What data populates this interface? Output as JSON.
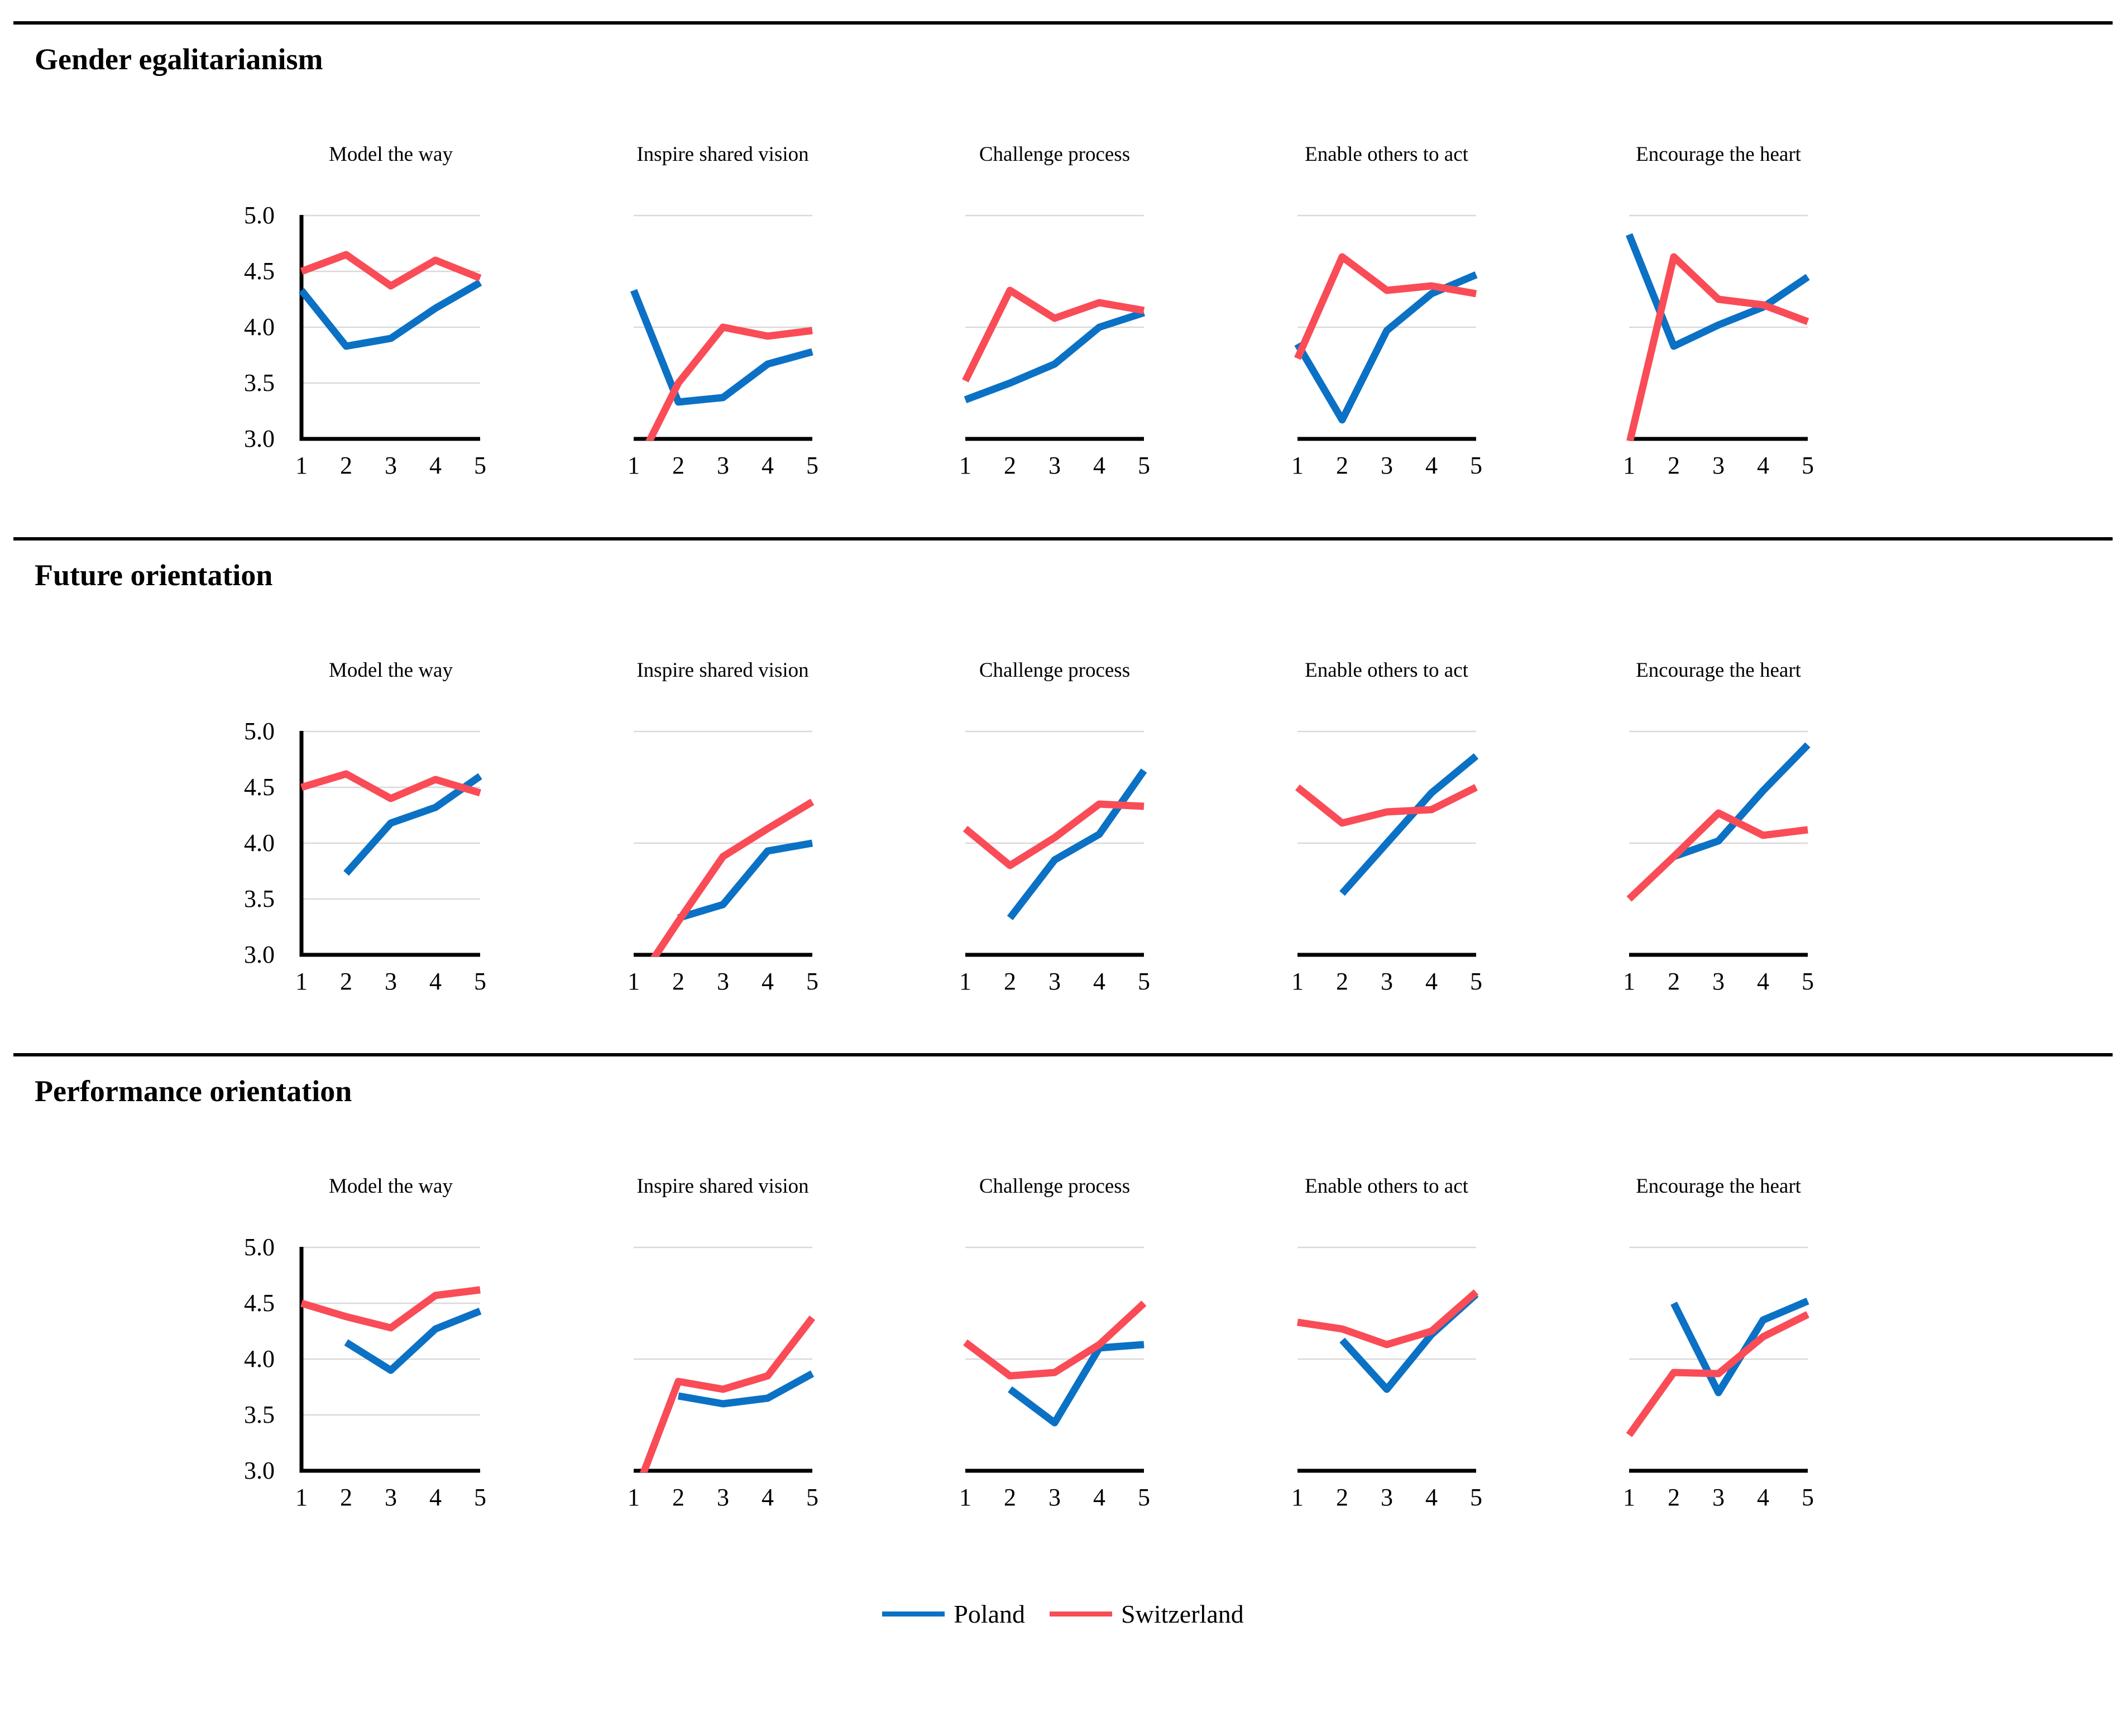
{
  "page": {
    "background": "#ffffff"
  },
  "colors": {
    "poland": "#0B71C5",
    "switzerland": "#F94C57",
    "gridline": "#D9D9D9",
    "axis": "#000000"
  },
  "legend": {
    "items": [
      {
        "label": "Poland",
        "color_key": "poland"
      },
      {
        "label": "Switzerland",
        "color_key": "switzerland"
      }
    ]
  },
  "axes": {
    "y_ticks": [
      "5.0",
      "4.5",
      "4.0",
      "3.5",
      "3.0"
    ],
    "x_ticks": [
      "1",
      "2",
      "3",
      "4",
      "5"
    ],
    "ylim": [
      3.0,
      5.0
    ]
  },
  "chart_data": {
    "type": "line",
    "x": [
      1,
      2,
      3,
      4,
      5
    ],
    "ylim": [
      3.0,
      5.0
    ],
    "legend_position": "bottom",
    "sections": [
      {
        "title": "Gender egalitarianism",
        "charts": [
          {
            "title": "Model the way",
            "show_y_axis": true,
            "gridlines": [
              3.5,
              4.0,
              4.5,
              5.0
            ],
            "series": [
              {
                "name": "Poland",
                "values": [
                  4.33,
                  3.83,
                  3.9,
                  4.17,
                  4.4
                ]
              },
              {
                "name": "Switzerland",
                "values": [
                  4.5,
                  4.65,
                  4.37,
                  4.6,
                  4.44
                ]
              }
            ]
          },
          {
            "title": "Inspire shared vision",
            "show_y_axis": false,
            "gridlines": [
              4.0,
              5.0
            ],
            "series": [
              {
                "name": "Poland",
                "values": [
                  4.33,
                  3.33,
                  3.37,
                  3.67,
                  3.78
                ]
              },
              {
                "name": "Switzerland",
                "values": [
                  2.7,
                  3.5,
                  4.0,
                  3.92,
                  3.97
                ]
              }
            ]
          },
          {
            "title": "Challenge process",
            "show_y_axis": false,
            "gridlines": [
              4.0,
              5.0
            ],
            "series": [
              {
                "name": "Poland",
                "values": [
                  3.35,
                  3.5,
                  3.67,
                  4.0,
                  4.13
                ]
              },
              {
                "name": "Switzerland",
                "values": [
                  3.52,
                  4.33,
                  4.08,
                  4.22,
                  4.15
                ]
              }
            ]
          },
          {
            "title": "Enable others to act",
            "show_y_axis": false,
            "gridlines": [
              4.0,
              5.0
            ],
            "series": [
              {
                "name": "Poland",
                "values": [
                  3.85,
                  3.17,
                  3.97,
                  4.3,
                  4.47
                ]
              },
              {
                "name": "Switzerland",
                "values": [
                  3.72,
                  4.63,
                  4.33,
                  4.37,
                  4.3
                ]
              }
            ]
          },
          {
            "title": "Encourage the heart",
            "show_y_axis": false,
            "gridlines": [
              4.0,
              5.0
            ],
            "series": [
              {
                "name": "Poland",
                "values": [
                  4.83,
                  3.83,
                  4.02,
                  4.18,
                  4.45
                ]
              },
              {
                "name": "Switzerland",
                "values": [
                  2.95,
                  4.63,
                  4.25,
                  4.2,
                  4.05
                ]
              }
            ]
          }
        ]
      },
      {
        "title": "Future orientation",
        "charts": [
          {
            "title": "Model the way",
            "show_y_axis": true,
            "gridlines": [
              3.5,
              4.0,
              4.5,
              5.0
            ],
            "series": [
              {
                "name": "Poland",
                "values": [
                  null,
                  3.73,
                  4.18,
                  4.32,
                  4.6
                ]
              },
              {
                "name": "Switzerland",
                "values": [
                  4.5,
                  4.62,
                  4.4,
                  4.57,
                  4.45
                ]
              }
            ]
          },
          {
            "title": "Inspire shared vision",
            "show_y_axis": false,
            "gridlines": [
              4.0,
              5.0
            ],
            "series": [
              {
                "name": "Poland",
                "values": [
                  null,
                  3.33,
                  3.45,
                  3.93,
                  4.0
                ]
              },
              {
                "name": "Switzerland",
                "values": [
                  2.7,
                  3.3,
                  3.88,
                  4.13,
                  4.37
                ]
              }
            ]
          },
          {
            "title": "Challenge process",
            "show_y_axis": false,
            "gridlines": [
              4.0,
              5.0
            ],
            "series": [
              {
                "name": "Poland",
                "values": [
                  null,
                  3.33,
                  3.85,
                  4.08,
                  4.65
                ]
              },
              {
                "name": "Switzerland",
                "values": [
                  4.13,
                  3.8,
                  4.05,
                  4.35,
                  4.33
                ]
              }
            ]
          },
          {
            "title": "Enable others to act",
            "show_y_axis": false,
            "gridlines": [
              4.0,
              5.0
            ],
            "series": [
              {
                "name": "Poland",
                "values": [
                  null,
                  3.55,
                  4.0,
                  4.45,
                  4.78
                ]
              },
              {
                "name": "Switzerland",
                "values": [
                  4.5,
                  4.18,
                  4.28,
                  4.3,
                  4.5
                ]
              }
            ]
          },
          {
            "title": "Encourage the heart",
            "show_y_axis": false,
            "gridlines": [
              4.0,
              5.0
            ],
            "series": [
              {
                "name": "Poland",
                "values": [
                  null,
                  3.88,
                  4.02,
                  4.47,
                  4.88
                ]
              },
              {
                "name": "Switzerland",
                "values": [
                  3.5,
                  3.88,
                  4.27,
                  4.07,
                  4.12
                ]
              }
            ]
          }
        ]
      },
      {
        "title": "Performance orientation",
        "charts": [
          {
            "title": "Model the way",
            "show_y_axis": true,
            "gridlines": [
              3.5,
              4.0,
              4.5,
              5.0
            ],
            "series": [
              {
                "name": "Poland",
                "values": [
                  null,
                  4.15,
                  3.9,
                  4.27,
                  4.43
                ]
              },
              {
                "name": "Switzerland",
                "values": [
                  4.5,
                  4.38,
                  4.28,
                  4.57,
                  4.62
                ]
              }
            ]
          },
          {
            "title": "Inspire shared vision",
            "show_y_axis": false,
            "gridlines": [
              4.0,
              5.0
            ],
            "series": [
              {
                "name": "Poland",
                "values": [
                  null,
                  3.67,
                  3.6,
                  3.65,
                  3.87
                ]
              },
              {
                "name": "Switzerland",
                "values": [
                  2.75,
                  3.8,
                  3.73,
                  3.85,
                  4.37
                ]
              }
            ]
          },
          {
            "title": "Challenge process",
            "show_y_axis": false,
            "gridlines": [
              4.0,
              5.0
            ],
            "series": [
              {
                "name": "Poland",
                "values": [
                  null,
                  3.73,
                  3.43,
                  4.1,
                  4.13
                ]
              },
              {
                "name": "Switzerland",
                "values": [
                  4.15,
                  3.85,
                  3.88,
                  4.13,
                  4.5
                ]
              }
            ]
          },
          {
            "title": "Enable others to act",
            "show_y_axis": false,
            "gridlines": [
              4.0,
              5.0
            ],
            "series": [
              {
                "name": "Poland",
                "values": [
                  null,
                  4.17,
                  3.73,
                  4.22,
                  4.58
                ]
              },
              {
                "name": "Switzerland",
                "values": [
                  4.33,
                  4.27,
                  4.13,
                  4.25,
                  4.6
                ]
              }
            ]
          },
          {
            "title": "Encourage the heart",
            "show_y_axis": false,
            "gridlines": [
              4.0,
              5.0
            ],
            "series": [
              {
                "name": "Poland",
                "values": [
                  null,
                  4.5,
                  3.7,
                  4.35,
                  4.52
                ]
              },
              {
                "name": "Switzerland",
                "values": [
                  3.32,
                  3.88,
                  3.87,
                  4.2,
                  4.4
                ]
              }
            ]
          }
        ]
      }
    ]
  }
}
